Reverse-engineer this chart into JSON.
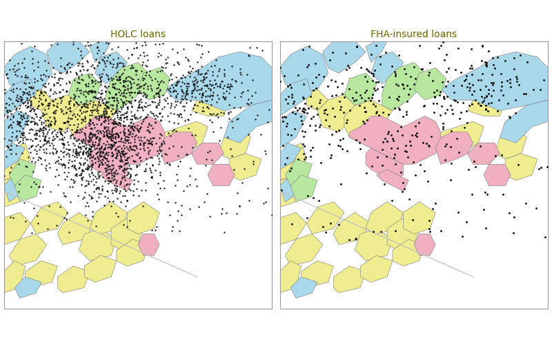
{
  "title_left": "HOLC loans",
  "title_right": "FHA-insured loans",
  "title_fontsize": 10,
  "title_color": "#666600",
  "bg_color": "#ffffff",
  "border_color": "#999999",
  "dot_color": "black",
  "dot_size_holc": 3.0,
  "dot_size_fha": 4.5,
  "dot_alpha": 0.9,
  "grade_colors": {
    "A": "#a8d8ea",
    "B": "#b8e8a0",
    "C": "#f0ec90",
    "D": "#f0b0c0"
  },
  "grade_edge_color": "#777777",
  "grade_edge_width": 0.4,
  "n_holc_dots": 2400,
  "n_fha_dots": 480,
  "seed_holc": 42,
  "seed_fha": 77,
  "figsize": [
    8.0,
    5.08
  ],
  "dpi": 100
}
